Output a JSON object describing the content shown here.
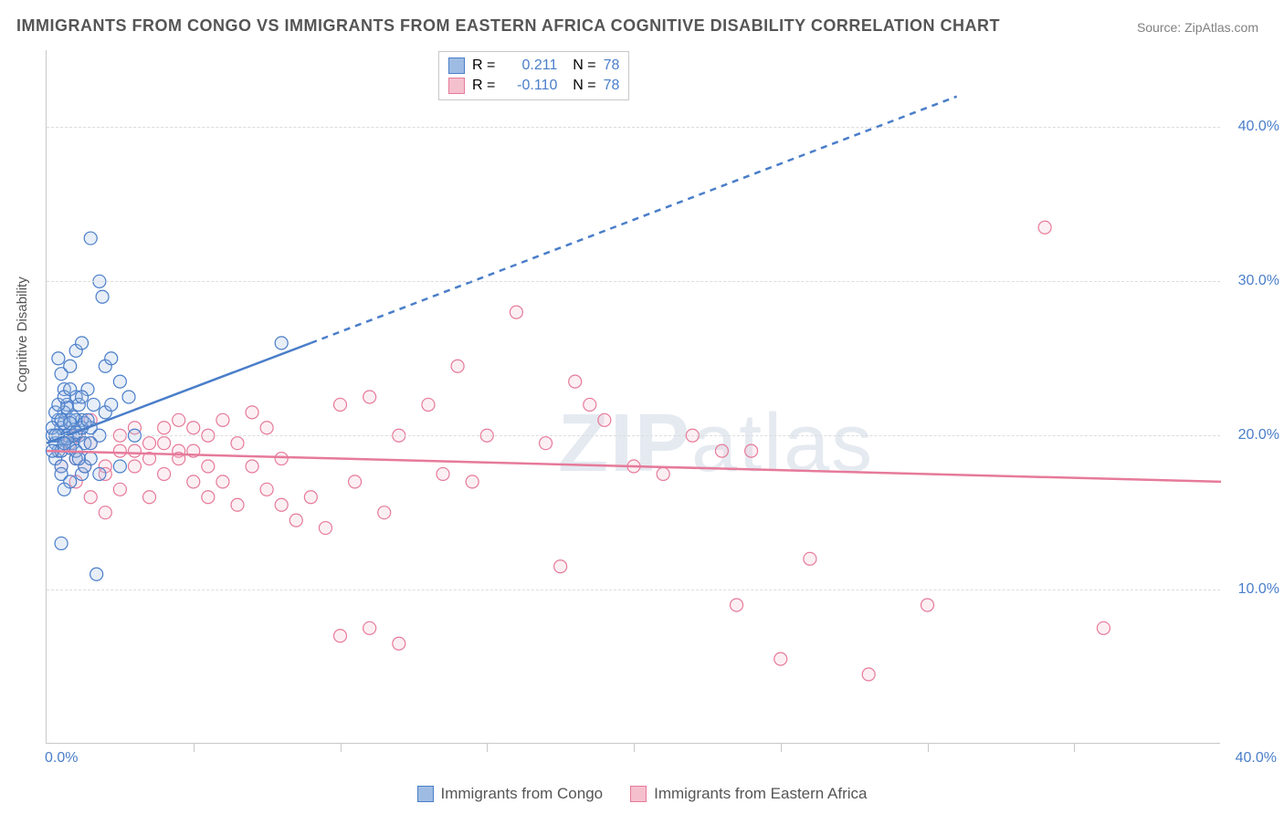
{
  "title": "IMMIGRANTS FROM CONGO VS IMMIGRANTS FROM EASTERN AFRICA COGNITIVE DISABILITY CORRELATION CHART",
  "source": "Source: ZipAtlas.com",
  "ylabel": "Cognitive Disability",
  "watermark": {
    "bold": "ZIP",
    "rest": "atlas"
  },
  "chart": {
    "type": "scatter-with-regression",
    "background_color": "#ffffff",
    "grid_color": "#dcdcdc",
    "axis_color": "#c8c8c8",
    "xlim": [
      0,
      40
    ],
    "ylim": [
      0,
      45
    ],
    "xtick_step": 5,
    "y_gridlines": [
      10,
      20,
      30,
      40
    ],
    "y_tick_labels": [
      "10.0%",
      "20.0%",
      "30.0%",
      "40.0%"
    ],
    "x_min_label": "0.0%",
    "x_max_label": "40.0%",
    "tick_label_color": "#4a7ec9",
    "tick_label_fontsize": 16,
    "ylabel_fontsize": 15,
    "ylabel_color": "#555555",
    "title_fontsize": 18,
    "title_color": "#555555",
    "marker_radius": 7,
    "marker_stroke_width": 1.2,
    "marker_fill_opacity": 0.25,
    "regression_line_width": 2.5,
    "regression_dash": "7 6"
  },
  "series": [
    {
      "name": "Immigrants from Congo",
      "color_stroke": "#4a7ec9",
      "color_fill": "#9ebce3",
      "r_value": "0.211",
      "n_value": "78",
      "regression": {
        "x1": 0,
        "y1": 19.5,
        "x2_solid": 9,
        "y2_solid": 26,
        "x2": 31,
        "y2": 42
      },
      "points": [
        [
          0.2,
          20.0
        ],
        [
          0.3,
          19.5
        ],
        [
          0.4,
          21.0
        ],
        [
          0.5,
          20.5
        ],
        [
          0.6,
          19.8
        ],
        [
          0.7,
          22.0
        ],
        [
          0.8,
          20.2
        ],
        [
          0.3,
          18.5
        ],
        [
          0.5,
          18.0
        ],
        [
          0.4,
          19.0
        ],
        [
          0.6,
          21.5
        ],
        [
          0.7,
          20.0
        ],
        [
          0.8,
          21.0
        ],
        [
          0.9,
          19.5
        ],
        [
          1.0,
          22.5
        ],
        [
          1.1,
          20.0
        ],
        [
          1.2,
          21.0
        ],
        [
          1.3,
          19.5
        ],
        [
          1.4,
          23.0
        ],
        [
          1.5,
          20.5
        ],
        [
          1.6,
          22.0
        ],
        [
          1.0,
          18.5
        ],
        [
          1.2,
          17.5
        ],
        [
          1.3,
          18.0
        ],
        [
          0.5,
          17.5
        ],
        [
          0.8,
          17.0
        ],
        [
          0.6,
          16.5
        ],
        [
          1.8,
          20.0
        ],
        [
          2.0,
          21.5
        ],
        [
          2.2,
          22.0
        ],
        [
          2.5,
          23.5
        ],
        [
          2.8,
          22.5
        ],
        [
          1.5,
          18.5
        ],
        [
          1.8,
          17.5
        ],
        [
          2.0,
          24.5
        ],
        [
          2.2,
          25.0
        ],
        [
          1.0,
          25.5
        ],
        [
          0.5,
          24.0
        ],
        [
          0.6,
          23.0
        ],
        [
          0.8,
          24.5
        ],
        [
          1.2,
          26.0
        ],
        [
          0.4,
          25.0
        ],
        [
          1.5,
          32.8
        ],
        [
          1.8,
          30.0
        ],
        [
          1.9,
          29.0
        ],
        [
          0.5,
          13.0
        ],
        [
          1.7,
          11.0
        ],
        [
          8.0,
          26.0
        ],
        [
          3.0,
          20.0
        ],
        [
          2.5,
          18.0
        ],
        [
          0.2,
          20.5
        ],
        [
          0.3,
          21.5
        ],
        [
          0.4,
          20.0
        ],
        [
          0.5,
          19.0
        ],
        [
          0.6,
          20.8
        ],
        [
          0.7,
          21.8
        ],
        [
          0.8,
          19.2
        ],
        [
          0.9,
          20.0
        ],
        [
          1.0,
          19.0
        ],
        [
          1.1,
          18.5
        ],
        [
          0.4,
          22.0
        ],
        [
          0.6,
          22.5
        ],
        [
          0.8,
          23.0
        ],
        [
          1.0,
          21.0
        ],
        [
          1.2,
          20.5
        ],
        [
          0.2,
          19.0
        ],
        [
          0.3,
          20.0
        ],
        [
          0.5,
          21.0
        ],
        [
          0.7,
          19.8
        ],
        [
          0.9,
          21.2
        ],
        [
          1.1,
          22.0
        ],
        [
          1.3,
          20.8
        ],
        [
          1.5,
          19.5
        ],
        [
          0.6,
          19.5
        ],
        [
          0.8,
          20.8
        ],
        [
          1.0,
          20.2
        ],
        [
          1.2,
          22.5
        ],
        [
          1.4,
          21.0
        ]
      ]
    },
    {
      "name": "Immigrants from Eastern Africa",
      "color_stroke": "#e67a9a",
      "color_fill": "#f5c0ce",
      "r_value": "-0.110",
      "n_value": "78",
      "regression": {
        "x1": 0,
        "y1": 19.0,
        "x2_solid": 40,
        "y2_solid": 17.0,
        "x2": 40,
        "y2": 17.0
      },
      "points": [
        [
          0.5,
          19.0
        ],
        [
          1.0,
          18.5
        ],
        [
          1.5,
          19.5
        ],
        [
          2.0,
          18.0
        ],
        [
          2.5,
          20.0
        ],
        [
          3.0,
          19.0
        ],
        [
          3.5,
          18.5
        ],
        [
          4.0,
          17.5
        ],
        [
          4.5,
          19.0
        ],
        [
          5.0,
          20.5
        ],
        [
          5.5,
          18.0
        ],
        [
          6.0,
          17.0
        ],
        [
          6.5,
          19.5
        ],
        [
          7.0,
          21.5
        ],
        [
          7.5,
          16.5
        ],
        [
          8.0,
          15.5
        ],
        [
          8.5,
          14.5
        ],
        [
          9.0,
          16.0
        ],
        [
          9.5,
          14.0
        ],
        [
          10.0,
          22.0
        ],
        [
          10.5,
          17.0
        ],
        [
          11.0,
          22.5
        ],
        [
          11.5,
          15.0
        ],
        [
          12.0,
          20.0
        ],
        [
          13.0,
          22.0
        ],
        [
          13.5,
          17.5
        ],
        [
          14.0,
          24.5
        ],
        [
          14.5,
          17.0
        ],
        [
          15.0,
          20.0
        ],
        [
          16.0,
          28.0
        ],
        [
          17.0,
          19.5
        ],
        [
          17.5,
          11.5
        ],
        [
          18.0,
          23.5
        ],
        [
          18.5,
          22.0
        ],
        [
          19.0,
          21.0
        ],
        [
          20.0,
          18.0
        ],
        [
          21.0,
          17.5
        ],
        [
          22.0,
          20.0
        ],
        [
          23.0,
          19.0
        ],
        [
          23.5,
          9.0
        ],
        [
          24.0,
          19.0
        ],
        [
          26.0,
          12.0
        ],
        [
          28.0,
          4.5
        ],
        [
          30.0,
          9.0
        ],
        [
          36.0,
          7.5
        ],
        [
          34.0,
          33.5
        ],
        [
          1.0,
          17.0
        ],
        [
          1.5,
          16.0
        ],
        [
          2.0,
          17.5
        ],
        [
          2.5,
          19.0
        ],
        [
          3.0,
          20.5
        ],
        [
          3.5,
          16.0
        ],
        [
          4.0,
          19.5
        ],
        [
          4.5,
          18.5
        ],
        [
          5.0,
          17.0
        ],
        [
          5.5,
          20.0
        ],
        [
          6.0,
          21.0
        ],
        [
          6.5,
          15.5
        ],
        [
          7.0,
          18.0
        ],
        [
          7.5,
          20.5
        ],
        [
          8.0,
          18.5
        ],
        [
          0.5,
          18.0
        ],
        [
          1.0,
          20.0
        ],
        [
          1.5,
          21.0
        ],
        [
          2.0,
          15.0
        ],
        [
          2.5,
          16.5
        ],
        [
          3.0,
          18.0
        ],
        [
          3.5,
          19.5
        ],
        [
          4.0,
          20.5
        ],
        [
          4.5,
          21.0
        ],
        [
          5.0,
          19.0
        ],
        [
          5.5,
          16.0
        ],
        [
          0.8,
          19.5
        ],
        [
          1.3,
          18.0
        ],
        [
          10.0,
          7.0
        ],
        [
          12.0,
          6.5
        ],
        [
          11.0,
          7.5
        ],
        [
          25.0,
          5.5
        ]
      ]
    }
  ],
  "legend": {
    "items": [
      {
        "label": "Immigrants from Congo",
        "fill": "#9ebce3",
        "stroke": "#4a7ec9"
      },
      {
        "label": "Immigrants from Eastern Africa",
        "fill": "#f5c0ce",
        "stroke": "#e67a9a"
      }
    ]
  }
}
